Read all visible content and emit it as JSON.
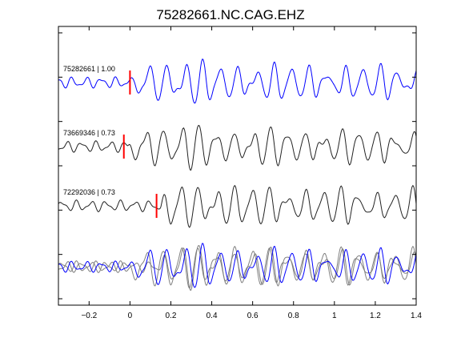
{
  "chart_data": {
    "type": "line",
    "title": "75282661.NC.CAG.EHZ",
    "xlim": [
      -0.35,
      1.4
    ],
    "x_ticks": [
      -0.2,
      0,
      0.2,
      0.4,
      0.6,
      0.8,
      1,
      1.2,
      1.4
    ],
    "x_tick_labels": [
      "−0.2",
      "0",
      "0.2",
      "0.4",
      "0.6",
      "0.8",
      "1",
      "1.2",
      "1.4"
    ],
    "y_ticks_count": 7,
    "grid": false,
    "traces": [
      {
        "label": "75282661 | 1.00",
        "event_id": "75282661",
        "correlation": 1.0,
        "color": "#0000ff",
        "pick_time": 0.0,
        "pick_color": "#ff0000",
        "seed": 3
      },
      {
        "label": "73669346 | 0.73",
        "event_id": "73669346",
        "correlation": 0.73,
        "color": "#222222",
        "pick_time": -0.03,
        "pick_color": "#ff0000",
        "seed": 7
      },
      {
        "label": "72292036 | 0.73",
        "event_id": "72292036",
        "correlation": 0.73,
        "color": "#222222",
        "pick_time": 0.13,
        "pick_color": "#ff0000",
        "seed": 11
      }
    ],
    "stack": {
      "colors": [
        "#808080",
        "#808080",
        "#0000ff"
      ]
    }
  }
}
